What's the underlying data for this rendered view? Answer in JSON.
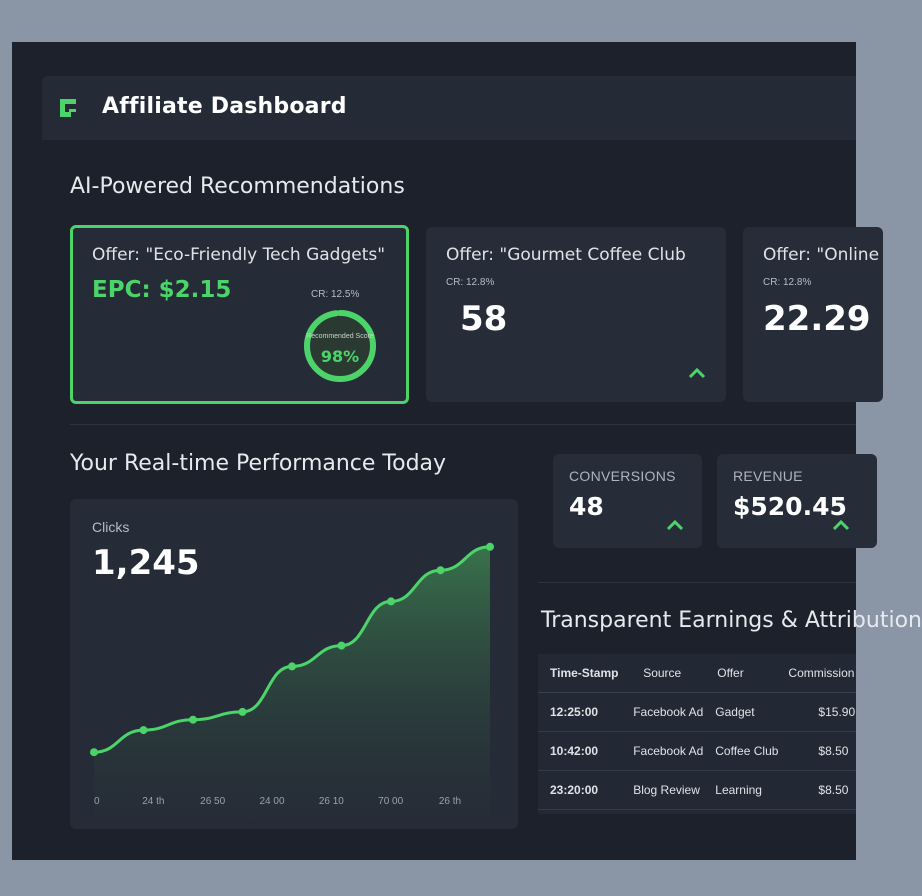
{
  "header": {
    "title": "Affiliate Dashboard"
  },
  "recommendations": {
    "title": "AI-Powered Recommendations",
    "cards": [
      {
        "offer": "Offer: \"Eco-Friendly Tech Gadgets\"",
        "epc": "EPC: $2.15",
        "cr": "CR: 12.5%",
        "ring_caption": "Recommended Score",
        "ring_value": "98%",
        "ring_fraction": 0.98
      },
      {
        "offer": "Offer: \"Gourmet Coffee Club",
        "cr": "CR: 12.8%",
        "value": "58"
      },
      {
        "offer": "Offer: \"Online",
        "cr": "CR: 12.8%",
        "value": "22.29"
      }
    ]
  },
  "performance": {
    "title": "Your Real-time Performance Today",
    "stats": [
      {
        "label": "CONVERSIONS",
        "value": "48"
      },
      {
        "label": "REVENUE",
        "value": "$520.45"
      }
    ]
  },
  "chart_data": {
    "type": "area",
    "title": "Clicks",
    "value_label": "1,245",
    "x_ticks": [
      "0",
      "24 th",
      "26 50",
      "24 00",
      "26 10",
      "70 00",
      "26 th"
    ],
    "y": [
      180,
      265,
      305,
      335,
      510,
      590,
      760,
      880,
      970
    ],
    "ylim": [
      0,
      1000
    ],
    "color": "#4cd46a",
    "grid": false
  },
  "earnings": {
    "title": "Transparent Earnings & Attribution",
    "columns": [
      "Time-Stamp",
      "Source",
      "Offer",
      "Commission"
    ],
    "rows": [
      [
        "12:25:00",
        "Facebook Ad",
        "Gadget",
        "$15.90"
      ],
      [
        "10:42:00",
        "Facebook Ad",
        "Coffee Club",
        "$8.50"
      ],
      [
        "23:20:00",
        "Blog Review",
        "Learning",
        "$8.50"
      ]
    ]
  },
  "colors": {
    "accent": "#4cd46a",
    "background": "#1c212b",
    "card": "#272d38"
  }
}
